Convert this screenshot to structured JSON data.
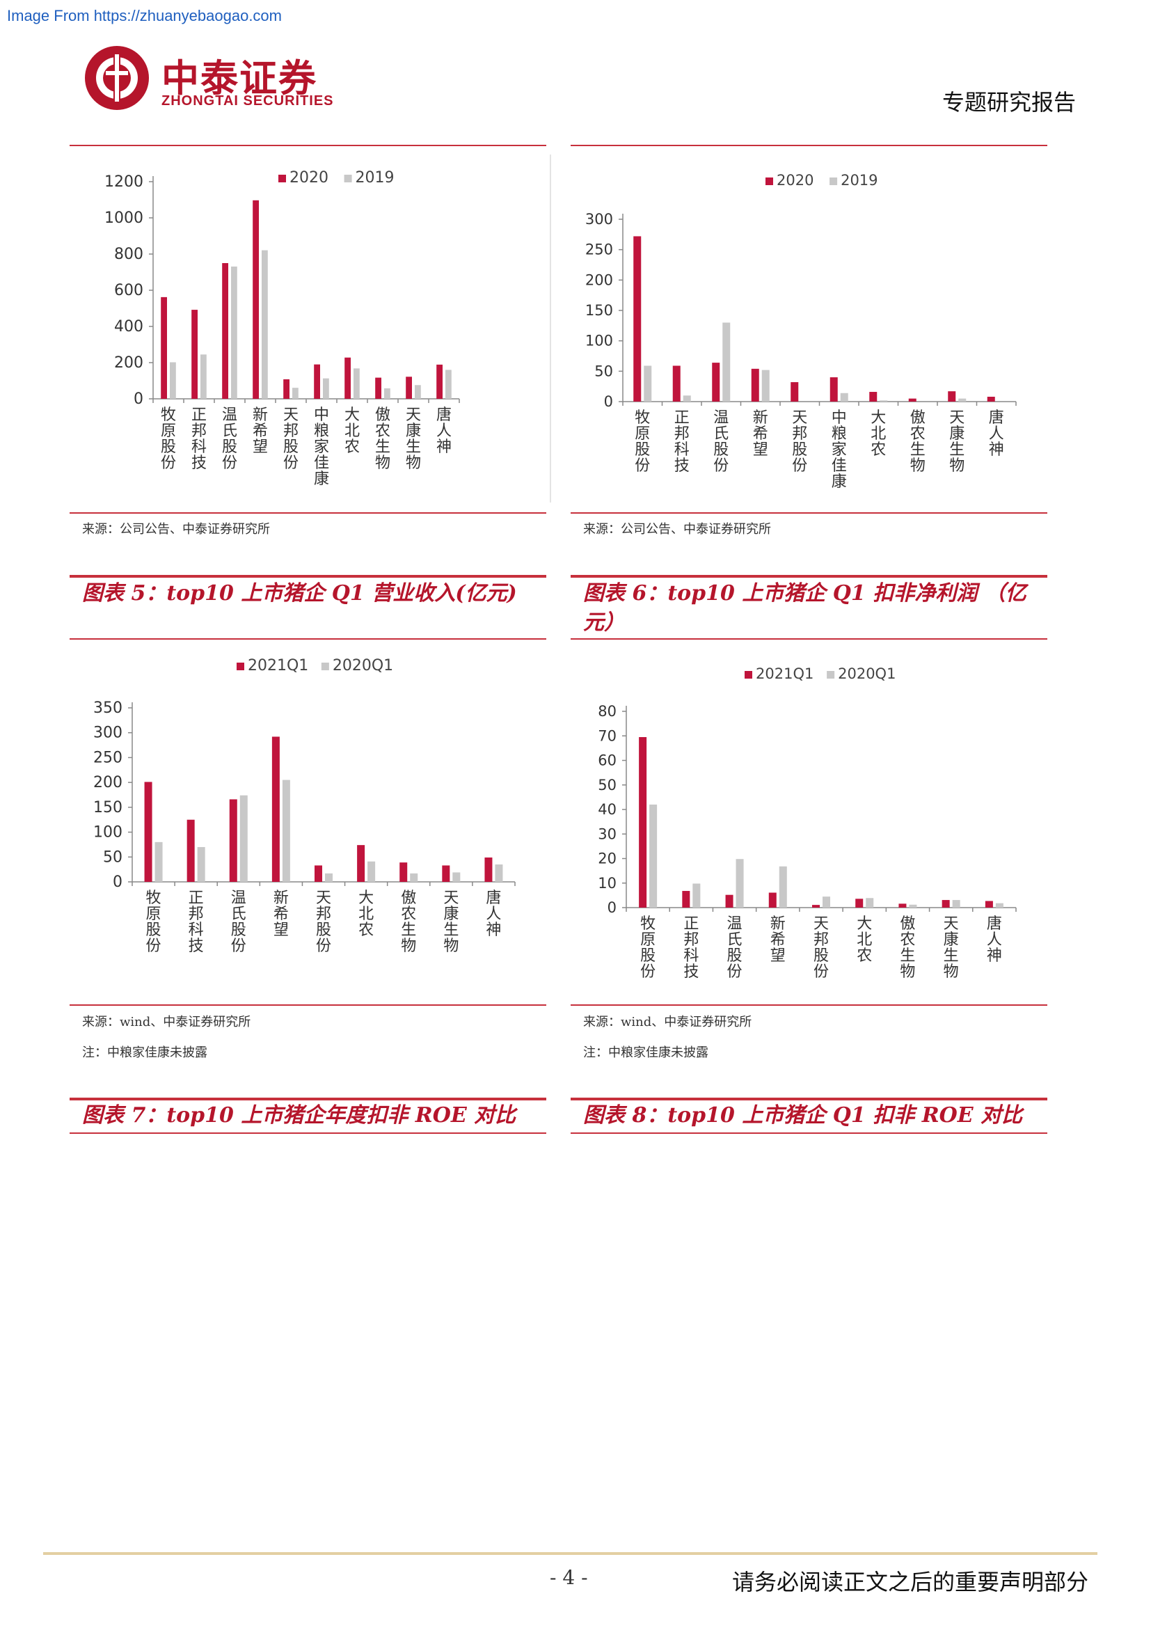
{
  "watermark": "Image From https://zhuanyebaogao.com",
  "header": {
    "logo_cn": "中泰证券",
    "logo_en": "ZHONGTAI SECURITIES",
    "report_type": "专题研究报告"
  },
  "colors": {
    "accent": "#b5152b",
    "series_primary": "#c0143c",
    "series_secondary": "#c8c8c8"
  },
  "figures": {
    "top_left": {
      "source": "来源：公司公告、中泰证券研究所"
    },
    "top_right": {
      "source": "来源：公司公告、中泰证券研究所"
    },
    "fig5": {
      "title": "图表 5：top10 上市猪企 Q1 营业收入(亿元)",
      "source": "来源：wind、中泰证券研究所",
      "note": "注：中粮家佳康未披露"
    },
    "fig6": {
      "title": "图表 6：top10 上市猪企 Q1 扣非净利润 （亿元）",
      "source": "来源：wind、中泰证券研究所",
      "note": "注：中粮家佳康未披露"
    },
    "fig7": {
      "title": "图表 7：top10 上市猪企年度扣非 ROE 对比"
    },
    "fig8": {
      "title": "图表 8：top10 上市猪企 Q1 扣非 ROE 对比"
    }
  },
  "chart_data": [
    {
      "id": "chart-annual-revenue",
      "type": "bar",
      "categories": [
        "牧原股份",
        "正邦科技",
        "温氏股份",
        "新希望",
        "天邦股份",
        "中粮家佳康",
        "大北农",
        "傲农生物",
        "天康生物",
        "唐人神"
      ],
      "series": [
        {
          "name": "2020",
          "values": [
            562,
            492,
            750,
            1097,
            108,
            190,
            228,
            117,
            122,
            189
          ]
        },
        {
          "name": "2019",
          "values": [
            202,
            245,
            731,
            821,
            61,
            113,
            168,
            58,
            76,
            160
          ]
        }
      ],
      "yticks": [
        0,
        200,
        400,
        600,
        800,
        1000,
        1200
      ],
      "ylim": [
        0,
        1200
      ],
      "legend": "top"
    },
    {
      "id": "chart-annual-profit",
      "type": "bar",
      "categories": [
        "牧原股份",
        "正邦科技",
        "温氏股份",
        "新希望",
        "天邦股份",
        "中粮家佳康",
        "大北农",
        "傲农生物",
        "天康生物",
        "唐人神"
      ],
      "series": [
        {
          "name": "2020",
          "values": [
            272,
            59,
            64,
            54,
            32,
            40,
            16,
            5,
            17,
            8
          ]
        },
        {
          "name": "2019",
          "values": [
            59,
            10,
            130,
            52,
            0,
            14,
            2,
            0,
            5,
            0
          ]
        }
      ],
      "yticks": [
        0,
        50,
        100,
        150,
        200,
        250,
        300
      ],
      "ylim": [
        0,
        300
      ],
      "legend": "top"
    },
    {
      "id": "chart-q1-revenue",
      "type": "bar",
      "categories": [
        "牧原股份",
        "正邦科技",
        "温氏股份",
        "新希望",
        "天邦股份",
        "大北农",
        "傲农生物",
        "天康生物",
        "唐人神"
      ],
      "series": [
        {
          "name": "2021Q1",
          "values": [
            201,
            125,
            166,
            292,
            33,
            74,
            39,
            33,
            49
          ]
        },
        {
          "name": "2020Q1",
          "values": [
            80,
            70,
            174,
            205,
            17,
            41,
            17,
            19,
            35
          ]
        }
      ],
      "yticks": [
        0,
        50,
        100,
        150,
        200,
        250,
        300,
        350
      ],
      "ylim": [
        0,
        350
      ],
      "legend": "top"
    },
    {
      "id": "chart-q1-profit",
      "type": "bar",
      "categories": [
        "牧原股份",
        "正邦科技",
        "温氏股份",
        "新希望",
        "天邦股份",
        "大北农",
        "傲农生物",
        "天康生物",
        "唐人神"
      ],
      "series": [
        {
          "name": "2021Q1",
          "values": [
            69.5,
            6.8,
            5.2,
            6.1,
            1.1,
            3.6,
            1.6,
            3.1,
            2.7
          ]
        },
        {
          "name": "2020Q1",
          "values": [
            42,
            9.8,
            19.8,
            16.8,
            4.5,
            3.9,
            1.2,
            3.1,
            1.8
          ]
        }
      ],
      "yticks": [
        0,
        10,
        20,
        30,
        40,
        50,
        60,
        70,
        80
      ],
      "ylim": [
        0,
        80
      ],
      "legend": "top"
    }
  ],
  "footer": {
    "page_number": "- 4 -",
    "disclaimer": "请务必阅读正文之后的重要声明部分"
  }
}
